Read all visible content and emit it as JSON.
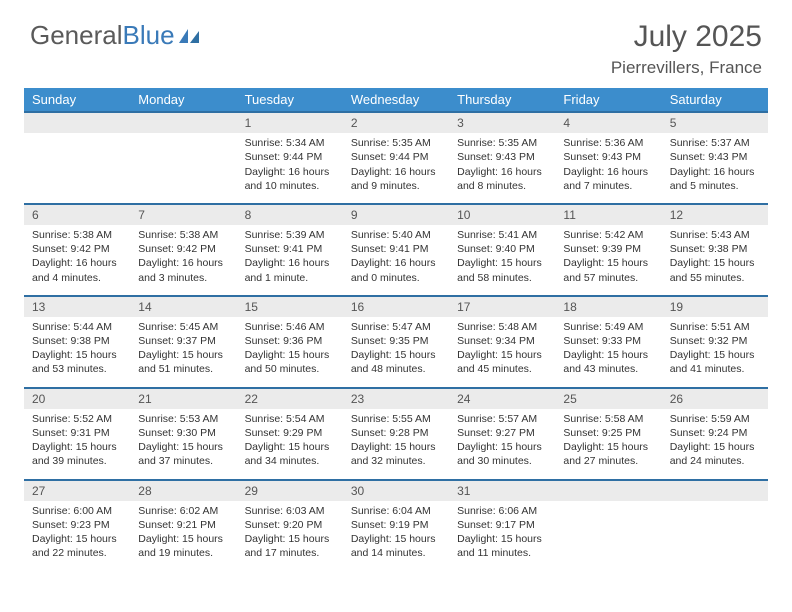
{
  "logo": {
    "part1": "General",
    "part2": "Blue"
  },
  "title": "July 2025",
  "location": "Pierrevillers, France",
  "colors": {
    "header_bg": "#3c8dcc",
    "row_divider": "#2f6fa3",
    "daynum_bg": "#ebebeb",
    "logo_gray": "#5a5a5a",
    "logo_blue": "#3a7ab8"
  },
  "days_of_week": [
    "Sunday",
    "Monday",
    "Tuesday",
    "Wednesday",
    "Thursday",
    "Friday",
    "Saturday"
  ],
  "weeks": [
    [
      null,
      null,
      {
        "n": "1",
        "sr": "5:34 AM",
        "ss": "9:44 PM",
        "dl": "16 hours and 10 minutes."
      },
      {
        "n": "2",
        "sr": "5:35 AM",
        "ss": "9:44 PM",
        "dl": "16 hours and 9 minutes."
      },
      {
        "n": "3",
        "sr": "5:35 AM",
        "ss": "9:43 PM",
        "dl": "16 hours and 8 minutes."
      },
      {
        "n": "4",
        "sr": "5:36 AM",
        "ss": "9:43 PM",
        "dl": "16 hours and 7 minutes."
      },
      {
        "n": "5",
        "sr": "5:37 AM",
        "ss": "9:43 PM",
        "dl": "16 hours and 5 minutes."
      }
    ],
    [
      {
        "n": "6",
        "sr": "5:38 AM",
        "ss": "9:42 PM",
        "dl": "16 hours and 4 minutes."
      },
      {
        "n": "7",
        "sr": "5:38 AM",
        "ss": "9:42 PM",
        "dl": "16 hours and 3 minutes."
      },
      {
        "n": "8",
        "sr": "5:39 AM",
        "ss": "9:41 PM",
        "dl": "16 hours and 1 minute."
      },
      {
        "n": "9",
        "sr": "5:40 AM",
        "ss": "9:41 PM",
        "dl": "16 hours and 0 minutes."
      },
      {
        "n": "10",
        "sr": "5:41 AM",
        "ss": "9:40 PM",
        "dl": "15 hours and 58 minutes."
      },
      {
        "n": "11",
        "sr": "5:42 AM",
        "ss": "9:39 PM",
        "dl": "15 hours and 57 minutes."
      },
      {
        "n": "12",
        "sr": "5:43 AM",
        "ss": "9:38 PM",
        "dl": "15 hours and 55 minutes."
      }
    ],
    [
      {
        "n": "13",
        "sr": "5:44 AM",
        "ss": "9:38 PM",
        "dl": "15 hours and 53 minutes."
      },
      {
        "n": "14",
        "sr": "5:45 AM",
        "ss": "9:37 PM",
        "dl": "15 hours and 51 minutes."
      },
      {
        "n": "15",
        "sr": "5:46 AM",
        "ss": "9:36 PM",
        "dl": "15 hours and 50 minutes."
      },
      {
        "n": "16",
        "sr": "5:47 AM",
        "ss": "9:35 PM",
        "dl": "15 hours and 48 minutes."
      },
      {
        "n": "17",
        "sr": "5:48 AM",
        "ss": "9:34 PM",
        "dl": "15 hours and 45 minutes."
      },
      {
        "n": "18",
        "sr": "5:49 AM",
        "ss": "9:33 PM",
        "dl": "15 hours and 43 minutes."
      },
      {
        "n": "19",
        "sr": "5:51 AM",
        "ss": "9:32 PM",
        "dl": "15 hours and 41 minutes."
      }
    ],
    [
      {
        "n": "20",
        "sr": "5:52 AM",
        "ss": "9:31 PM",
        "dl": "15 hours and 39 minutes."
      },
      {
        "n": "21",
        "sr": "5:53 AM",
        "ss": "9:30 PM",
        "dl": "15 hours and 37 minutes."
      },
      {
        "n": "22",
        "sr": "5:54 AM",
        "ss": "9:29 PM",
        "dl": "15 hours and 34 minutes."
      },
      {
        "n": "23",
        "sr": "5:55 AM",
        "ss": "9:28 PM",
        "dl": "15 hours and 32 minutes."
      },
      {
        "n": "24",
        "sr": "5:57 AM",
        "ss": "9:27 PM",
        "dl": "15 hours and 30 minutes."
      },
      {
        "n": "25",
        "sr": "5:58 AM",
        "ss": "9:25 PM",
        "dl": "15 hours and 27 minutes."
      },
      {
        "n": "26",
        "sr": "5:59 AM",
        "ss": "9:24 PM",
        "dl": "15 hours and 24 minutes."
      }
    ],
    [
      {
        "n": "27",
        "sr": "6:00 AM",
        "ss": "9:23 PM",
        "dl": "15 hours and 22 minutes."
      },
      {
        "n": "28",
        "sr": "6:02 AM",
        "ss": "9:21 PM",
        "dl": "15 hours and 19 minutes."
      },
      {
        "n": "29",
        "sr": "6:03 AM",
        "ss": "9:20 PM",
        "dl": "15 hours and 17 minutes."
      },
      {
        "n": "30",
        "sr": "6:04 AM",
        "ss": "9:19 PM",
        "dl": "15 hours and 14 minutes."
      },
      {
        "n": "31",
        "sr": "6:06 AM",
        "ss": "9:17 PM",
        "dl": "15 hours and 11 minutes."
      },
      null,
      null
    ]
  ],
  "labels": {
    "sunrise": "Sunrise:",
    "sunset": "Sunset:",
    "daylight": "Daylight:"
  }
}
